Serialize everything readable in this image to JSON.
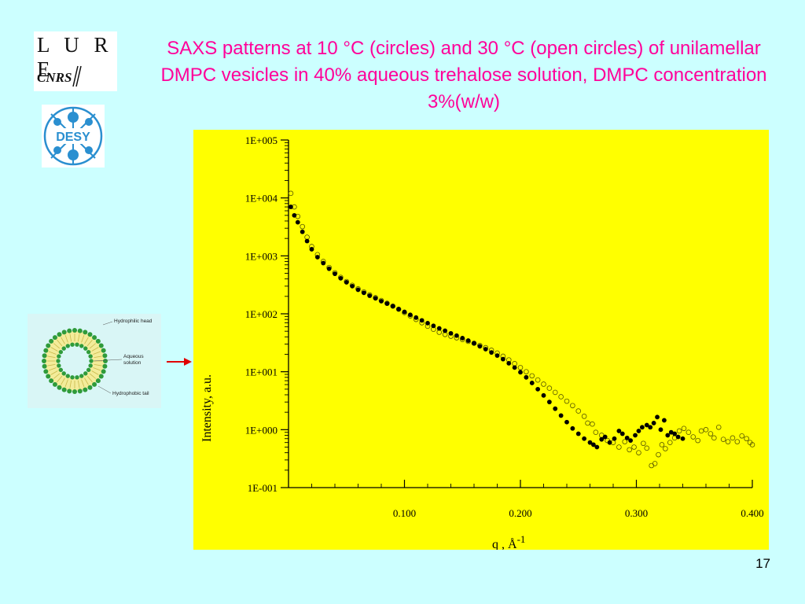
{
  "slide": {
    "title": "SAXS patterns at 10 °C (circles) and 30 °C (open circles) of unilamellar DMPC vesicles in 40% aqueous trehalose solution, DMPC concentration 3%(w/w)",
    "page_number": "17",
    "title_color": "#ff0099",
    "background_color": "#ccffff"
  },
  "logos": {
    "lure_text": "L U R E",
    "cnrs_text": "CNRS",
    "desy_text": "DESY"
  },
  "vesicle_figure": {
    "labels": {
      "head": "Hydrophilic head",
      "aqueous_line1": "Aqueous",
      "aqueous_line2": "solution",
      "tail": "Hydrophobic tail"
    },
    "arrow_color": "#e00000"
  },
  "chart_data": {
    "type": "scatter",
    "title": "",
    "xlabel": "q , Å",
    "xlabel_superscript": "-1",
    "ylabel": "Intensity, a.u.",
    "y_scale": "log",
    "xlim": [
      0.0,
      0.4
    ],
    "ylim": [
      0.1,
      100000
    ],
    "x_ticks": [
      0.1,
      0.2,
      0.3,
      0.4
    ],
    "x_tick_labels": [
      "0.100",
      "0.200",
      "0.300",
      "0.400"
    ],
    "y_ticks": [
      0.1,
      1,
      10,
      100,
      1000,
      10000,
      100000
    ],
    "y_tick_labels": [
      "1E-001",
      "1E+000",
      "1E+001",
      "1E+002",
      "1E+003",
      "1E+004",
      "1E+005"
    ],
    "background": "#ffff00",
    "grid": false,
    "series": [
      {
        "name": "10 °C (circles)",
        "marker": "filled",
        "color": "#000000",
        "points": [
          [
            0.002,
            7000
          ],
          [
            0.005,
            5000
          ],
          [
            0.008,
            3800
          ],
          [
            0.012,
            2600
          ],
          [
            0.016,
            1800
          ],
          [
            0.02,
            1300
          ],
          [
            0.025,
            950
          ],
          [
            0.03,
            750
          ],
          [
            0.035,
            600
          ],
          [
            0.04,
            490
          ],
          [
            0.045,
            410
          ],
          [
            0.05,
            350
          ],
          [
            0.055,
            300
          ],
          [
            0.06,
            260
          ],
          [
            0.065,
            230
          ],
          [
            0.07,
            205
          ],
          [
            0.075,
            185
          ],
          [
            0.08,
            165
          ],
          [
            0.085,
            150
          ],
          [
            0.09,
            135
          ],
          [
            0.095,
            120
          ],
          [
            0.1,
            108
          ],
          [
            0.105,
            96
          ],
          [
            0.11,
            86
          ],
          [
            0.115,
            77
          ],
          [
            0.12,
            69
          ],
          [
            0.125,
            62
          ],
          [
            0.13,
            56
          ],
          [
            0.135,
            51
          ],
          [
            0.14,
            46
          ],
          [
            0.145,
            42
          ],
          [
            0.15,
            38
          ],
          [
            0.155,
            34.5
          ],
          [
            0.16,
            31
          ],
          [
            0.165,
            27.5
          ],
          [
            0.17,
            24.5
          ],
          [
            0.175,
            21.5
          ],
          [
            0.18,
            19
          ],
          [
            0.185,
            16.5
          ],
          [
            0.19,
            14
          ],
          [
            0.195,
            11.8
          ],
          [
            0.2,
            9.8
          ],
          [
            0.205,
            8
          ],
          [
            0.21,
            6.4
          ],
          [
            0.215,
            5
          ],
          [
            0.22,
            3.9
          ],
          [
            0.225,
            3.0
          ],
          [
            0.23,
            2.3
          ],
          [
            0.235,
            1.75
          ],
          [
            0.24,
            1.35
          ],
          [
            0.245,
            1.05
          ],
          [
            0.25,
            0.85
          ],
          [
            0.255,
            0.7
          ],
          [
            0.26,
            0.6
          ],
          [
            0.263,
            0.55
          ],
          [
            0.266,
            0.5
          ],
          [
            0.27,
            0.68
          ],
          [
            0.273,
            0.75
          ],
          [
            0.277,
            0.6
          ],
          [
            0.281,
            0.7
          ],
          [
            0.285,
            0.95
          ],
          [
            0.288,
            0.85
          ],
          [
            0.292,
            0.72
          ],
          [
            0.295,
            0.65
          ],
          [
            0.299,
            0.8
          ],
          [
            0.302,
            0.95
          ],
          [
            0.305,
            1.1
          ],
          [
            0.309,
            1.2
          ],
          [
            0.312,
            1.1
          ],
          [
            0.315,
            1.3
          ],
          [
            0.318,
            1.65
          ],
          [
            0.321,
            1.0
          ],
          [
            0.324,
            1.45
          ],
          [
            0.327,
            0.8
          ],
          [
            0.33,
            0.9
          ],
          [
            0.333,
            0.85
          ],
          [
            0.336,
            0.75
          ],
          [
            0.34,
            0.7
          ]
        ]
      },
      {
        "name": "30 °C (open circles)",
        "marker": "open",
        "color": "#555500",
        "points": [
          [
            0.002,
            12000
          ],
          [
            0.005,
            7000
          ],
          [
            0.008,
            4800
          ],
          [
            0.012,
            3200
          ],
          [
            0.016,
            2100
          ],
          [
            0.02,
            1450
          ],
          [
            0.025,
            1050
          ],
          [
            0.03,
            800
          ],
          [
            0.035,
            630
          ],
          [
            0.04,
            510
          ],
          [
            0.045,
            425
          ],
          [
            0.05,
            360
          ],
          [
            0.055,
            310
          ],
          [
            0.06,
            270
          ],
          [
            0.065,
            238
          ],
          [
            0.07,
            212
          ],
          [
            0.075,
            190
          ],
          [
            0.08,
            170
          ],
          [
            0.085,
            152
          ],
          [
            0.09,
            136
          ],
          [
            0.095,
            120
          ],
          [
            0.1,
            105
          ],
          [
            0.105,
            92
          ],
          [
            0.11,
            80
          ],
          [
            0.115,
            70
          ],
          [
            0.12,
            61
          ],
          [
            0.125,
            54
          ],
          [
            0.13,
            48
          ],
          [
            0.135,
            44
          ],
          [
            0.14,
            41
          ],
          [
            0.145,
            38.5
          ],
          [
            0.15,
            36
          ],
          [
            0.155,
            33.5
          ],
          [
            0.16,
            31
          ],
          [
            0.165,
            28.5
          ],
          [
            0.17,
            26
          ],
          [
            0.175,
            23.5
          ],
          [
            0.18,
            21
          ],
          [
            0.185,
            18.5
          ],
          [
            0.19,
            16
          ],
          [
            0.195,
            13.8
          ],
          [
            0.2,
            11.8
          ],
          [
            0.205,
            10
          ],
          [
            0.21,
            8.5
          ],
          [
            0.215,
            7.2
          ],
          [
            0.22,
            6.1
          ],
          [
            0.225,
            5.2
          ],
          [
            0.23,
            4.4
          ],
          [
            0.235,
            3.7
          ],
          [
            0.24,
            3.1
          ],
          [
            0.245,
            2.6
          ],
          [
            0.25,
            2.1
          ],
          [
            0.255,
            1.7
          ],
          [
            0.258,
            1.3
          ],
          [
            0.262,
            1.25
          ],
          [
            0.265,
            0.9
          ],
          [
            0.27,
            0.8
          ],
          [
            0.275,
            0.65
          ],
          [
            0.28,
            0.6
          ],
          [
            0.285,
            0.5
          ],
          [
            0.29,
            0.62
          ],
          [
            0.294,
            0.45
          ],
          [
            0.298,
            0.5
          ],
          [
            0.302,
            0.4
          ],
          [
            0.306,
            0.58
          ],
          [
            0.309,
            0.48
          ],
          [
            0.313,
            0.24
          ],
          [
            0.316,
            0.26
          ],
          [
            0.319,
            0.37
          ],
          [
            0.322,
            0.55
          ],
          [
            0.325,
            0.47
          ],
          [
            0.329,
            0.6
          ],
          [
            0.333,
            0.72
          ],
          [
            0.337,
            0.95
          ],
          [
            0.341,
            1.05
          ],
          [
            0.345,
            0.9
          ],
          [
            0.349,
            0.75
          ],
          [
            0.353,
            0.65
          ],
          [
            0.356,
            0.95
          ],
          [
            0.36,
            1.0
          ],
          [
            0.364,
            0.85
          ],
          [
            0.367,
            0.72
          ],
          [
            0.371,
            1.1
          ],
          [
            0.375,
            0.68
          ],
          [
            0.379,
            0.62
          ],
          [
            0.383,
            0.72
          ],
          [
            0.387,
            0.62
          ],
          [
            0.391,
            0.78
          ],
          [
            0.395,
            0.7
          ],
          [
            0.398,
            0.6
          ],
          [
            0.4,
            0.55
          ]
        ]
      }
    ]
  }
}
